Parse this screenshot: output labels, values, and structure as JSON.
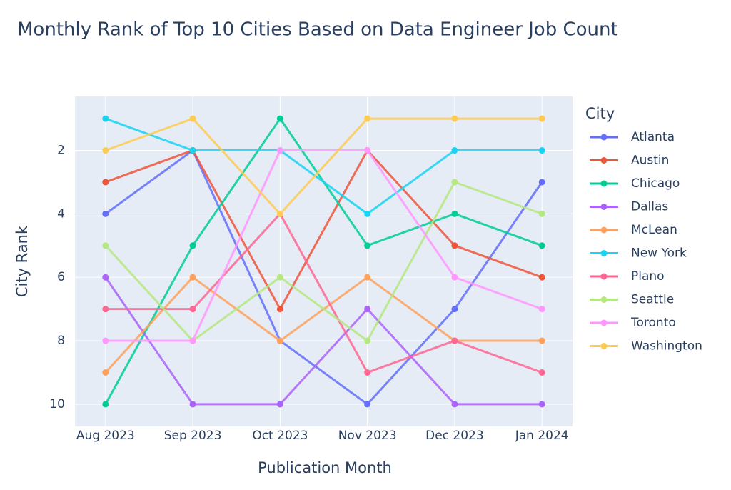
{
  "chart_data": {
    "type": "line",
    "title": "Monthly Rank of Top 10 Cities Based on Data Engineer Job Count",
    "x_label": "Publication Month",
    "y_label": "City Rank",
    "legend_title": "City",
    "categories": [
      "Aug 2023",
      "Sep 2023",
      "Oct 2023",
      "Nov 2023",
      "Dec 2023",
      "Jan 2024"
    ],
    "ylim": [
      0.3,
      10.7
    ],
    "y_reversed": true,
    "yticks": [
      2,
      4,
      6,
      8,
      10
    ],
    "grid": true,
    "legend_position": "right",
    "series": [
      {
        "name": "Atlanta",
        "color": "#636efa",
        "values": [
          4,
          2,
          8,
          10,
          7,
          3
        ]
      },
      {
        "name": "Austin",
        "color": "#ef553b",
        "values": [
          3,
          2,
          7,
          2,
          5,
          6
        ]
      },
      {
        "name": "Chicago",
        "color": "#00cc96",
        "values": [
          10,
          5,
          1,
          5,
          4,
          5
        ]
      },
      {
        "name": "Dallas",
        "color": "#ab63fa",
        "values": [
          6,
          10,
          10,
          7,
          10,
          10
        ]
      },
      {
        "name": "McLean",
        "color": "#ffa15a",
        "values": [
          9,
          6,
          8,
          6,
          8,
          8
        ]
      },
      {
        "name": "New York",
        "color": "#19d3f3",
        "values": [
          1,
          2,
          2,
          4,
          2,
          2
        ]
      },
      {
        "name": "Plano",
        "color": "#ff6692",
        "values": [
          7,
          7,
          4,
          9,
          8,
          9
        ]
      },
      {
        "name": "Seattle",
        "color": "#b6e880",
        "values": [
          5,
          8,
          6,
          8,
          3,
          4
        ]
      },
      {
        "name": "Toronto",
        "color": "#ff97ff",
        "values": [
          8,
          8,
          2,
          2,
          6,
          7
        ]
      },
      {
        "name": "Washington",
        "color": "#fecb52",
        "values": [
          2,
          1,
          4,
          1,
          1,
          1
        ]
      }
    ]
  }
}
